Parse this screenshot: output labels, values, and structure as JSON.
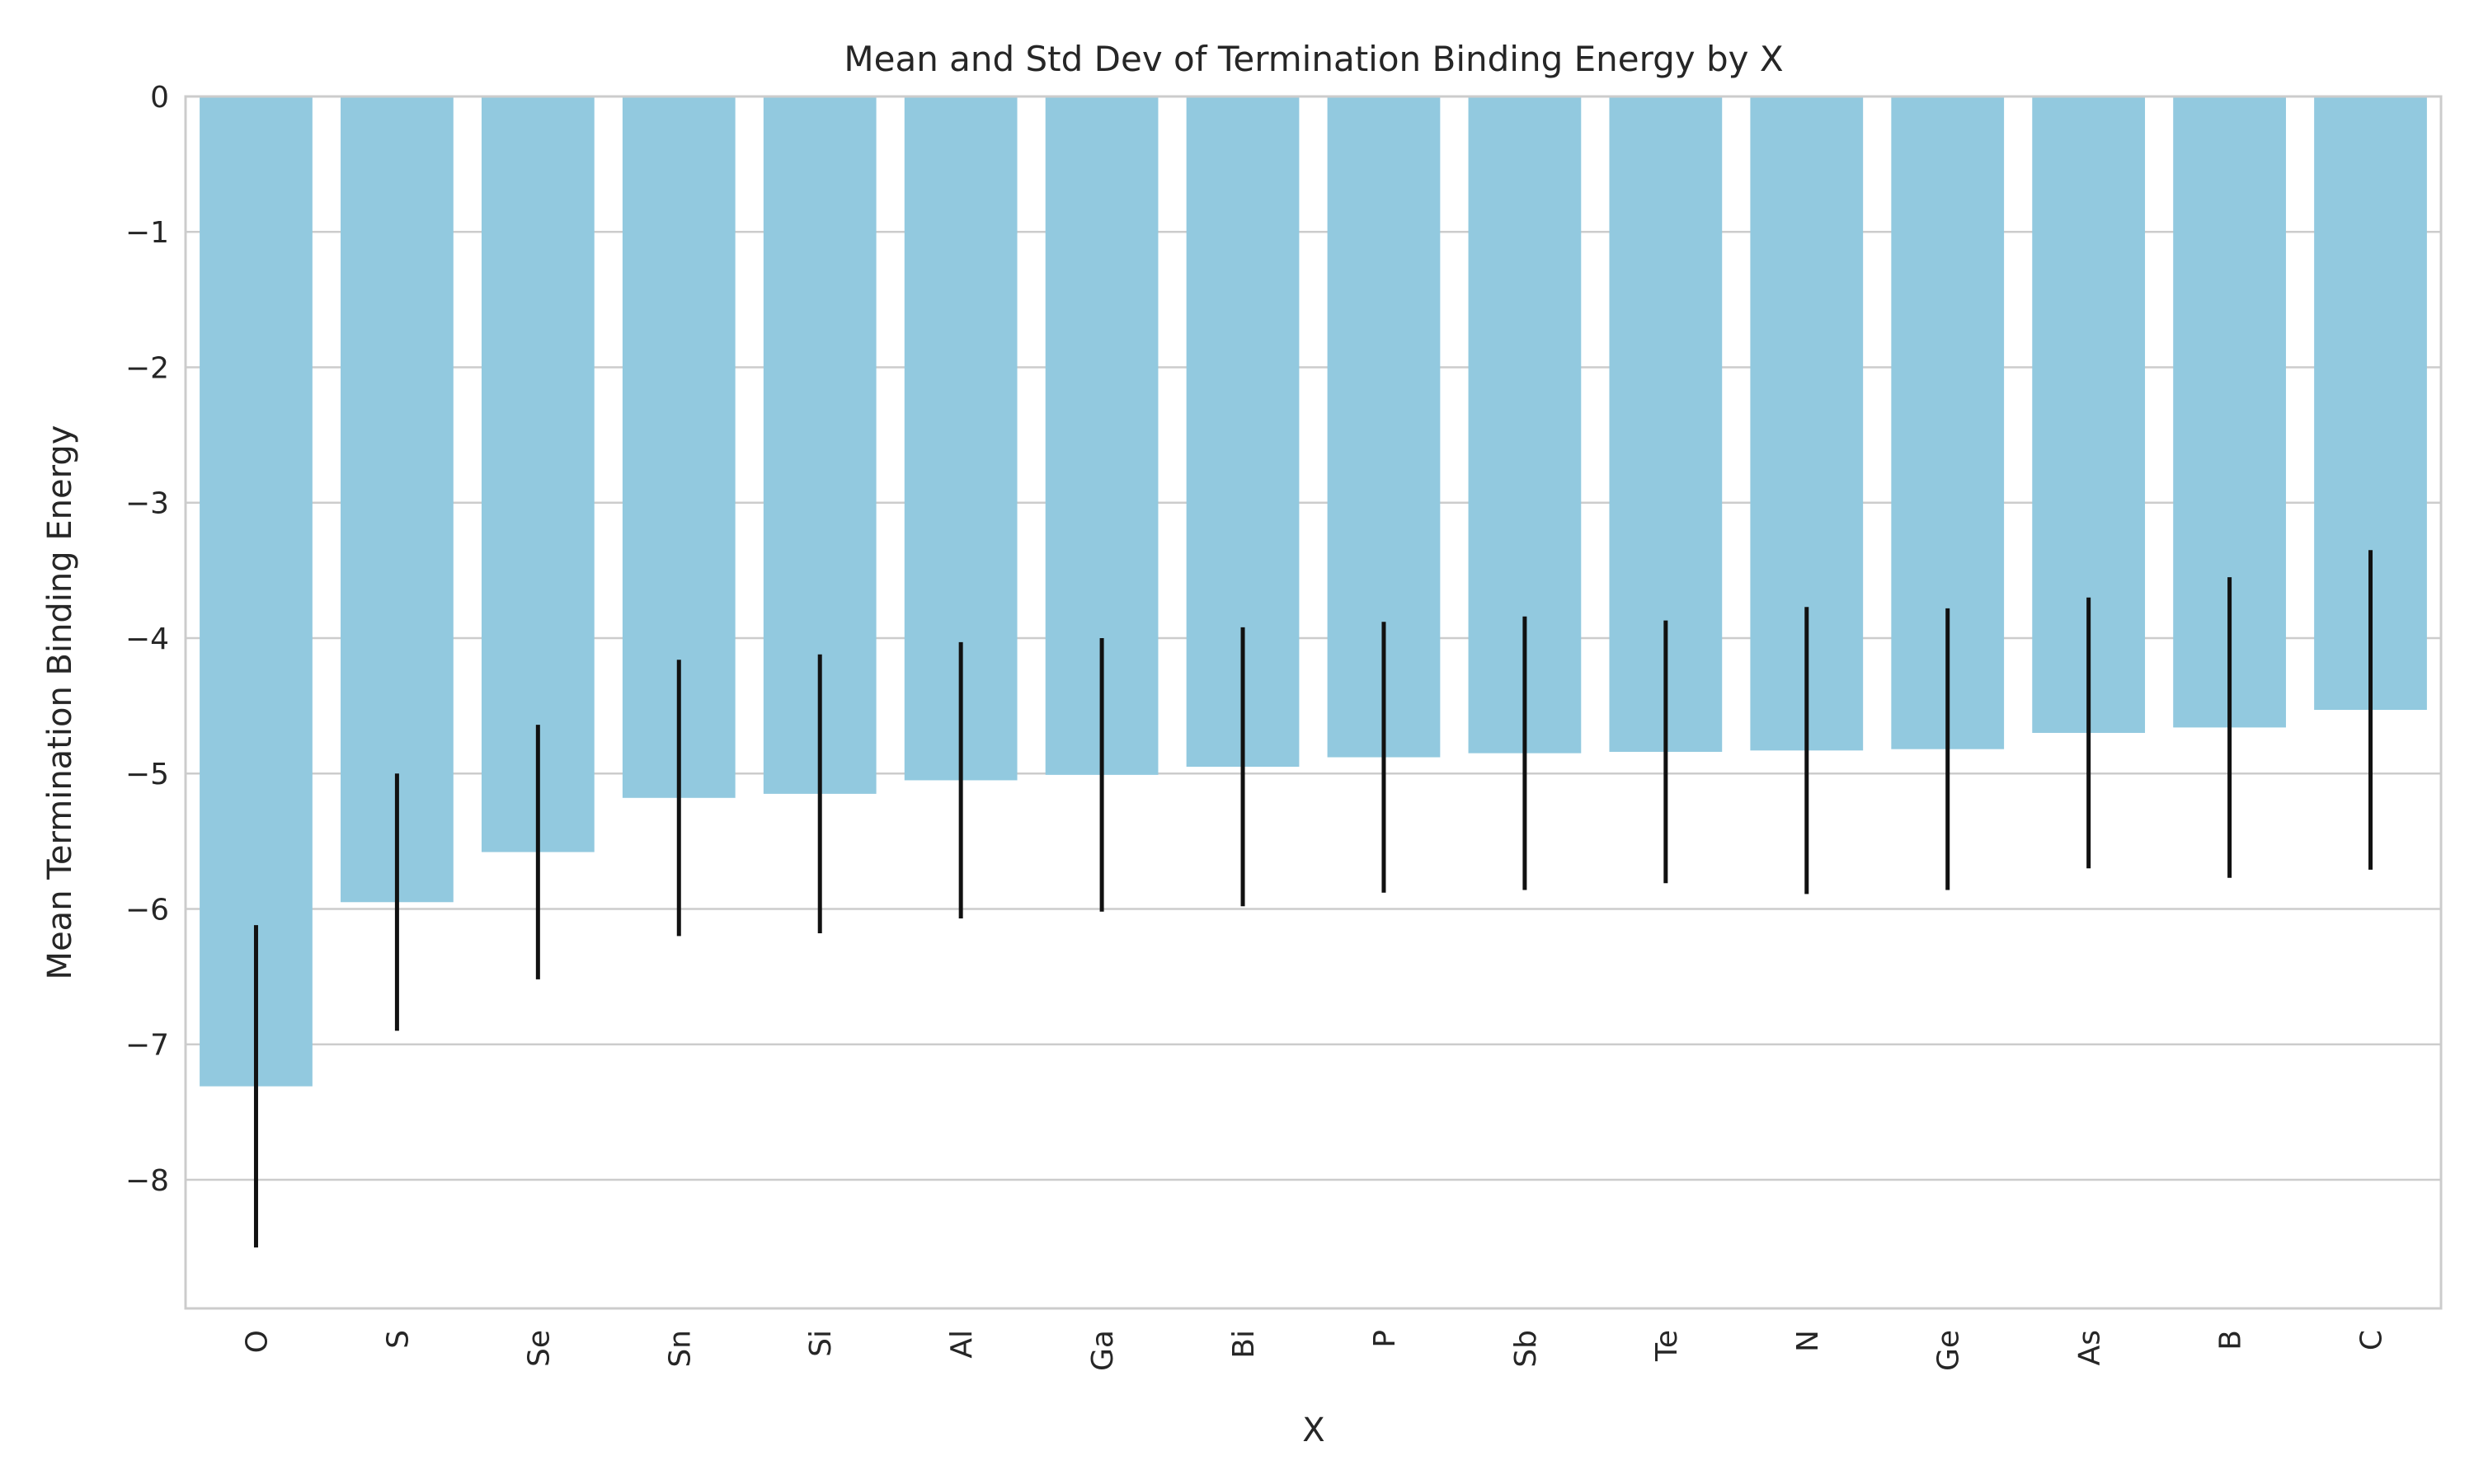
{
  "chart_data": {
    "type": "bar",
    "title": "Mean and Std Dev of Termination Binding Energy by X",
    "xlabel": "X",
    "ylabel": "Mean Termination Binding Energy",
    "categories": [
      "O",
      "S",
      "Se",
      "Sn",
      "Si",
      "Al",
      "Ga",
      "Bi",
      "P",
      "Sb",
      "Te",
      "N",
      "Ge",
      "As",
      "B",
      "C"
    ],
    "values": [
      -7.31,
      -5.95,
      -5.58,
      -5.18,
      -5.15,
      -5.05,
      -5.01,
      -4.95,
      -4.88,
      -4.85,
      -4.84,
      -4.83,
      -4.82,
      -4.7,
      -4.66,
      -4.53
    ],
    "std": [
      1.19,
      0.95,
      0.94,
      1.02,
      1.03,
      1.02,
      1.01,
      1.03,
      1.0,
      1.01,
      0.97,
      1.06,
      1.04,
      1.0,
      1.11,
      1.18
    ],
    "ylim": [
      -8.95,
      0
    ],
    "yticks": [
      0,
      -1,
      -2,
      -3,
      -4,
      -5,
      -6,
      -7,
      -8
    ],
    "ytick_labels": [
      "0",
      "−1",
      "−2",
      "−3",
      "−4",
      "−5",
      "−6",
      "−7",
      "−8"
    ],
    "grid": true,
    "colors": {
      "bar": "#92c9df",
      "error": "#111111",
      "grid": "#cccccc",
      "spine": "#cccccc"
    }
  }
}
